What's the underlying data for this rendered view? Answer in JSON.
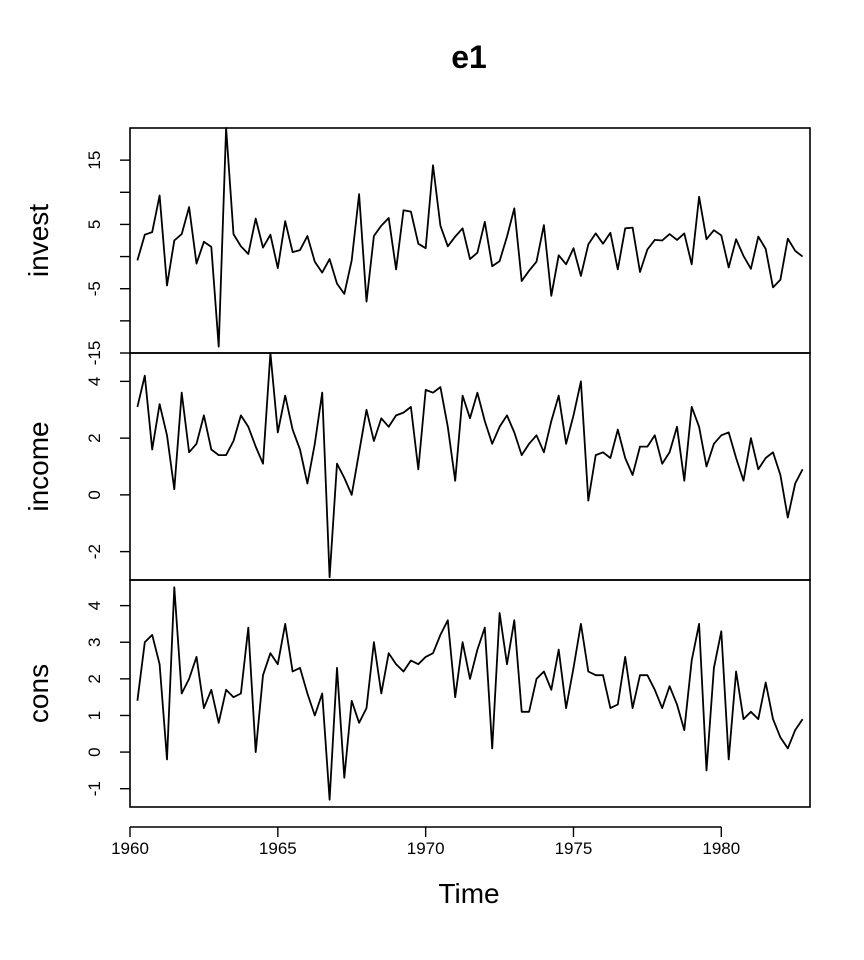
{
  "chart_data": {
    "type": "line",
    "title": "e1",
    "xlabel": "Time",
    "x": {
      "start": 1960.25,
      "frequency": 4
    },
    "xlim": [
      1960,
      1983
    ],
    "x_ticks": [
      1960,
      1965,
      1970,
      1975,
      1980
    ],
    "grid": false,
    "legend": "none",
    "panels": [
      {
        "name": "invest",
        "ylim": [
          -15,
          20
        ],
        "y_ticks": [
          -15,
          -10,
          -5,
          0,
          5,
          10,
          15
        ],
        "y_tick_labels": [
          "-15",
          "",
          "-5",
          "",
          "5",
          "",
          "15"
        ],
        "values": [
          -0.6,
          3.4,
          3.8,
          9.5,
          -4.5,
          2.5,
          3.5,
          7.7,
          -1.1,
          2.3,
          1.5,
          -14.0,
          20.0,
          3.5,
          1.6,
          0.4,
          5.9,
          1.4,
          3.4,
          -1.8,
          5.5,
          0.7,
          1.0,
          3.2,
          -0.8,
          -2.5,
          -0.4,
          -4.2,
          -5.8,
          -0.6,
          9.7,
          -7.0,
          3.2,
          4.8,
          6.0,
          -2.0,
          7.2,
          7.0,
          2.0,
          1.3,
          14.2,
          4.8,
          1.6,
          3.1,
          4.4,
          -0.4,
          0.6,
          5.4,
          -1.5,
          -0.7,
          3.1,
          7.5,
          -3.8,
          -2.2,
          -0.8,
          4.9,
          -6.1,
          0.2,
          -1.2,
          1.3,
          -3.0,
          1.9,
          3.6,
          2.0,
          3.7,
          -2.0,
          4.4,
          4.5,
          -2.4,
          1.1,
          2.6,
          2.5,
          3.5,
          2.6,
          3.6,
          -1.2,
          9.3,
          2.7,
          4.1,
          3.3,
          -1.7,
          2.7,
          0.1,
          -1.9,
          3.1,
          1.2,
          -4.8,
          -3.6,
          2.8,
          0.9,
          0.0
        ]
      },
      {
        "name": "income",
        "ylim": [
          -3,
          5
        ],
        "y_ticks": [
          -2,
          0,
          2,
          4
        ],
        "y_tick_labels": [
          "-2",
          "0",
          "2",
          "4"
        ],
        "values": [
          3.1,
          4.2,
          1.6,
          3.2,
          2.1,
          0.2,
          3.6,
          1.5,
          1.8,
          2.8,
          1.6,
          1.4,
          1.4,
          1.9,
          2.8,
          2.4,
          1.7,
          1.1,
          5.0,
          2.2,
          3.5,
          2.3,
          1.6,
          0.4,
          1.8,
          3.6,
          -2.9,
          1.1,
          0.6,
          0.0,
          1.5,
          3.0,
          1.9,
          2.7,
          2.4,
          2.8,
          2.9,
          3.1,
          0.9,
          3.7,
          3.6,
          3.8,
          2.4,
          0.5,
          3.5,
          2.7,
          3.6,
          2.6,
          1.8,
          2.4,
          2.8,
          2.2,
          1.4,
          1.8,
          2.1,
          1.5,
          2.6,
          3.5,
          1.8,
          2.8,
          4.0,
          -0.2,
          1.4,
          1.5,
          1.3,
          2.3,
          1.3,
          0.7,
          1.7,
          1.7,
          2.1,
          1.1,
          1.5,
          2.4,
          0.5,
          3.1,
          2.4,
          1.0,
          1.8,
          2.1,
          2.2,
          1.3,
          0.5,
          2.0,
          0.9,
          1.3,
          1.5,
          0.7,
          -0.8,
          0.4,
          0.9
        ]
      },
      {
        "name": "cons",
        "ylim": [
          -1.5,
          4.7
        ],
        "y_ticks": [
          -1,
          0,
          1,
          2,
          3,
          4
        ],
        "y_tick_labels": [
          "-1",
          "0",
          "1",
          "2",
          "3",
          "4"
        ],
        "values": [
          1.4,
          3.0,
          3.2,
          2.4,
          -0.2,
          4.5,
          1.6,
          2.0,
          2.6,
          1.2,
          1.7,
          0.8,
          1.7,
          1.5,
          1.6,
          3.4,
          0.0,
          2.1,
          2.7,
          2.4,
          3.5,
          2.2,
          2.3,
          1.6,
          1.0,
          1.6,
          -1.3,
          2.3,
          -0.7,
          1.4,
          0.8,
          1.2,
          3.0,
          1.6,
          2.7,
          2.4,
          2.2,
          2.5,
          2.4,
          2.6,
          2.7,
          3.2,
          3.6,
          1.5,
          3.0,
          2.0,
          2.8,
          3.4,
          0.1,
          3.8,
          2.4,
          3.6,
          1.1,
          1.1,
          2.0,
          2.2,
          1.7,
          2.8,
          1.2,
          2.3,
          3.5,
          2.2,
          2.1,
          2.1,
          1.2,
          1.3,
          2.6,
          1.2,
          2.1,
          2.1,
          1.7,
          1.2,
          1.8,
          1.3,
          0.6,
          2.5,
          3.5,
          -0.5,
          2.3,
          3.3,
          -0.2,
          2.2,
          0.9,
          1.1,
          0.9,
          1.9,
          0.9,
          0.4,
          0.1,
          0.6,
          0.9
        ]
      }
    ]
  }
}
